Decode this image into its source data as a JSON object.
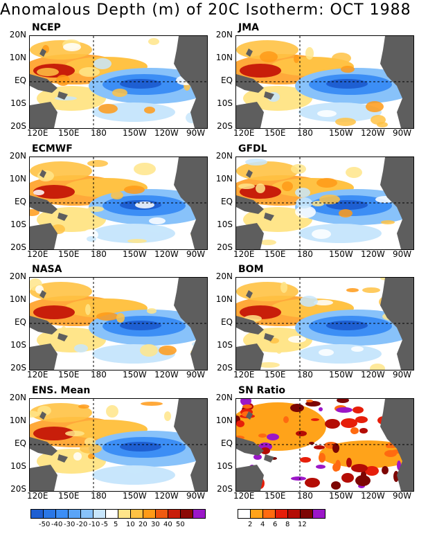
{
  "title": "Anomalous Depth (m) of 20C Isotherm: OCT 1988",
  "panels": [
    {
      "label": "NCEP"
    },
    {
      "label": "JMA"
    },
    {
      "label": "ECMWF"
    },
    {
      "label": "GFDL"
    },
    {
      "label": "NASA"
    },
    {
      "label": "BOM"
    },
    {
      "label": "ENS. Mean"
    },
    {
      "label": "SN Ratio"
    }
  ],
  "lat_labels": [
    "20N",
    "10N",
    "EQ",
    "10S",
    "20S"
  ],
  "lon_labels": [
    "120E",
    "150E",
    "180",
    "150W",
    "120W",
    "90W"
  ],
  "legend_anomaly": {
    "ticks": [
      "-50",
      "-40",
      "-30",
      "-20",
      "-10",
      "-5",
      "5",
      "10",
      "20",
      "30",
      "40",
      "50"
    ],
    "colors": [
      "#1e5fd2",
      "#2a77e6",
      "#3c8ef5",
      "#5aa4f7",
      "#88c2fa",
      "#c8e6fc",
      "#ffffff",
      "#ffe58a",
      "#ffc244",
      "#ff9a17",
      "#f05a10",
      "#c81e0a",
      "#8c0a05",
      "#9b17c8"
    ]
  },
  "legend_snr": {
    "ticks": [
      "2",
      "4",
      "6",
      "8",
      "12"
    ],
    "colors": [
      "#ffffff",
      "#ffa31a",
      "#ff6a10",
      "#e61e0a",
      "#b40c05",
      "#7d0603",
      "#9b17c8"
    ]
  }
}
